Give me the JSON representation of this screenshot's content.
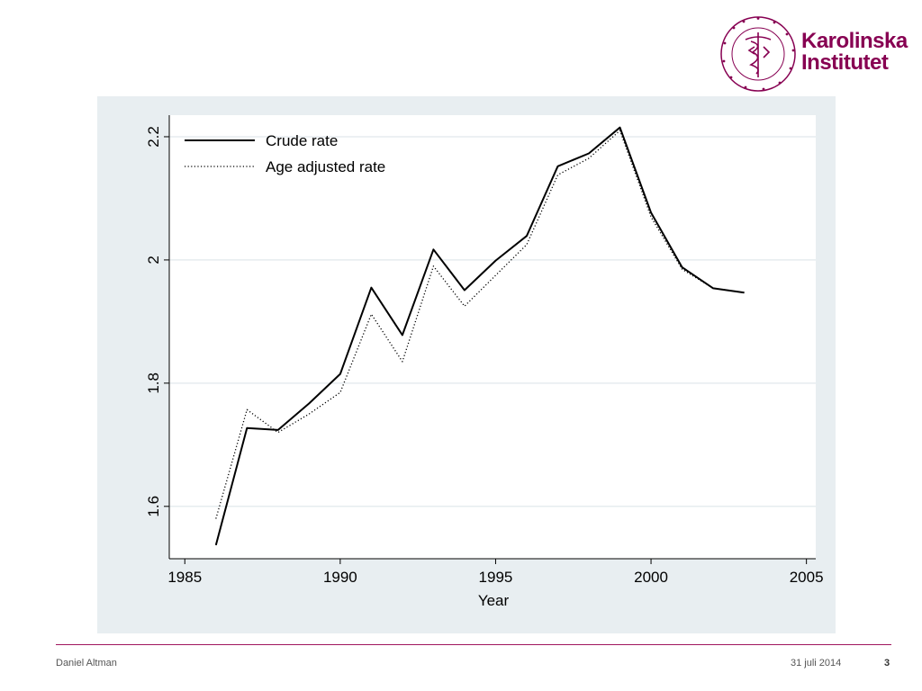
{
  "logo": {
    "line1": "Karolinska",
    "line2": "Institutet",
    "brand_color": "#870052"
  },
  "footer": {
    "author": "Daniel Altman",
    "date": "31 juli 2014",
    "page": "3",
    "rule_color": "#a0165e"
  },
  "chart_data": {
    "type": "line",
    "title": "",
    "xlabel": "Year",
    "ylabel": "",
    "xlim": [
      1984.5,
      2005.3
    ],
    "ylim": [
      1.515,
      2.235
    ],
    "xticks": [
      1985,
      1990,
      1995,
      2000,
      2005
    ],
    "xtick_labels": [
      "1985",
      "1990",
      "1995",
      "2000",
      "2005"
    ],
    "yticks": [
      1.6,
      1.8,
      2,
      2.2
    ],
    "ytick_labels": [
      "1.6",
      "1.8",
      "2",
      "2.2"
    ],
    "grid": true,
    "legend_position": "top-left",
    "x": [
      1986,
      1987,
      1988,
      1989,
      1990,
      1991,
      1992,
      1993,
      1994,
      1995,
      1996,
      1997,
      1998,
      1999,
      2000,
      2001,
      2002,
      2003
    ],
    "series": [
      {
        "name": "Crude rate",
        "style": "solid",
        "values": [
          1.537,
          1.727,
          1.724,
          1.767,
          1.815,
          1.955,
          1.878,
          2.017,
          1.951,
          1.999,
          2.039,
          2.152,
          2.173,
          2.215,
          2.077,
          1.988,
          1.954,
          1.947
        ]
      },
      {
        "name": "Age adjusted rate",
        "style": "dotted",
        "values": [
          1.58,
          1.757,
          1.72,
          1.75,
          1.785,
          1.912,
          1.835,
          1.99,
          1.925,
          1.975,
          2.025,
          2.138,
          2.165,
          2.21,
          2.07,
          1.985,
          1.954,
          1.947
        ]
      }
    ]
  }
}
